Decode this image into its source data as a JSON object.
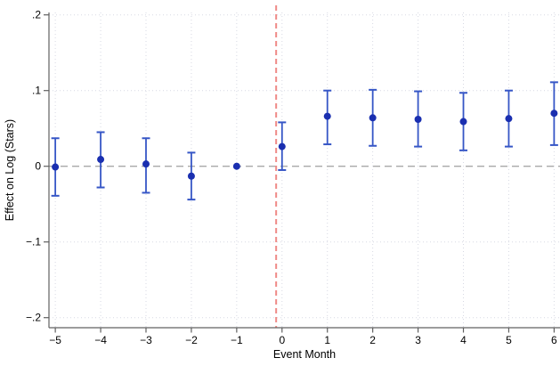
{
  "chart_data": {
    "type": "scatter",
    "subtype": "event-study-coefficient-plot",
    "title": "",
    "xlabel": "Event Month",
    "ylabel": "Effect on Log (Stars)",
    "xlim": [
      -5.14,
      6.13
    ],
    "ylim": [
      -0.2,
      0.2
    ],
    "grid": "dotted",
    "x_ticks": [
      -5,
      -4,
      -3,
      -2,
      -1,
      0,
      1,
      2,
      3,
      4,
      5,
      6
    ],
    "x_tick_labels": [
      "−5",
      "−4",
      "−3",
      "−2",
      "−1",
      "0",
      "1",
      "2",
      "3",
      "4",
      "5",
      "6"
    ],
    "y_ticks": [
      0.2,
      0.1,
      0,
      -0.1,
      -0.2
    ],
    "y_tick_labels": [
      ".2",
      ".1",
      "0",
      "−.1",
      "−.2"
    ],
    "reference_lines": {
      "horizontal_zero": {
        "y": 0,
        "style": "dashed",
        "color": "#a8a8a8"
      },
      "vertical_event": {
        "x": -0.13,
        "style": "dashed",
        "color": "#ef8a87"
      }
    },
    "colors": {
      "marker": "#1a2fb0",
      "ci_bar": "#3656c6",
      "gridline": "#d7d9e3",
      "axis": "#606060"
    },
    "series": [
      {
        "name": "coefficient",
        "points": [
          {
            "x": -5,
            "est": -0.001,
            "ci_low": -0.039,
            "ci_high": 0.037
          },
          {
            "x": -4,
            "est": 0.009,
            "ci_low": -0.028,
            "ci_high": 0.045
          },
          {
            "x": -3,
            "est": 0.003,
            "ci_low": -0.035,
            "ci_high": 0.037
          },
          {
            "x": -2,
            "est": -0.013,
            "ci_low": -0.044,
            "ci_high": 0.018
          },
          {
            "x": -1,
            "est": 0.0,
            "ci_low": 0.0,
            "ci_high": 0.0
          },
          {
            "x": 0,
            "est": 0.026,
            "ci_low": -0.005,
            "ci_high": 0.058
          },
          {
            "x": 1,
            "est": 0.066,
            "ci_low": 0.029,
            "ci_high": 0.1
          },
          {
            "x": 2,
            "est": 0.064,
            "ci_low": 0.027,
            "ci_high": 0.101
          },
          {
            "x": 3,
            "est": 0.062,
            "ci_low": 0.026,
            "ci_high": 0.099
          },
          {
            "x": 4,
            "est": 0.059,
            "ci_low": 0.021,
            "ci_high": 0.097
          },
          {
            "x": 5,
            "est": 0.063,
            "ci_low": 0.026,
            "ci_high": 0.1
          },
          {
            "x": 6,
            "est": 0.07,
            "ci_low": 0.028,
            "ci_high": 0.111
          }
        ]
      }
    ]
  }
}
